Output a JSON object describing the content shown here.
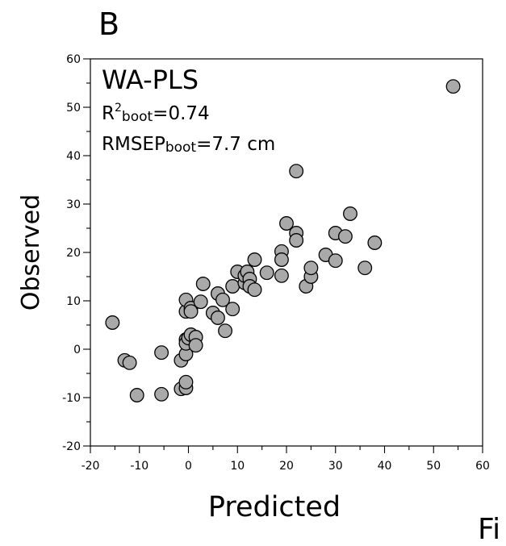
{
  "panel_label": "B",
  "corner_text": "Fi",
  "chart_data": {
    "type": "scatter",
    "title": "",
    "method": "WA-PLS",
    "stat_r2": {
      "prefix": "R",
      "sup": "2",
      "sub": "boot",
      "value": "=0.74"
    },
    "stat_rmsep": {
      "prefix": "RMSEP",
      "sub": "boot",
      "value": "=7.7 cm"
    },
    "xlabel": "Predicted",
    "ylabel": "Observed",
    "xlim": [
      -20,
      60
    ],
    "ylim": [
      -20,
      60
    ],
    "x_ticks": [
      "-20",
      "-10",
      "0",
      "10",
      "20",
      "30",
      "40",
      "50",
      "60"
    ],
    "y_ticks": [
      "-20",
      "-10",
      "0",
      "10",
      "20",
      "30",
      "40",
      "50",
      "60"
    ],
    "grid": false,
    "point_color": "#a9a9a9",
    "points": [
      [
        -15.5,
        5.5
      ],
      [
        -13,
        -2.3
      ],
      [
        -12,
        -2.8
      ],
      [
        -10.5,
        -9.5
      ],
      [
        -5.5,
        -9.3
      ],
      [
        -5.5,
        -0.7
      ],
      [
        -1.5,
        -8.2
      ],
      [
        -1.5,
        -2.3
      ],
      [
        -0.5,
        -1.0
      ],
      [
        -0.5,
        -8.0
      ],
      [
        -0.5,
        -6.8
      ],
      [
        -0.5,
        2.0
      ],
      [
        -0.5,
        1.2
      ],
      [
        0,
        2.3
      ],
      [
        0.5,
        3.0
      ],
      [
        1.5,
        2.5
      ],
      [
        1.5,
        0.8
      ],
      [
        -0.5,
        7.8
      ],
      [
        -0.5,
        10.2
      ],
      [
        0.5,
        8.5
      ],
      [
        0.5,
        7.8
      ],
      [
        2.5,
        9.8
      ],
      [
        3,
        13.5
      ],
      [
        5,
        7.5
      ],
      [
        6,
        11.5
      ],
      [
        6,
        6.5
      ],
      [
        7,
        10.2
      ],
      [
        7.5,
        3.8
      ],
      [
        9,
        13.0
      ],
      [
        9,
        8.3
      ],
      [
        10,
        16.0
      ],
      [
        11.5,
        13.7
      ],
      [
        11.5,
        15.2
      ],
      [
        12,
        16.0
      ],
      [
        12.5,
        14.5
      ],
      [
        12.5,
        13.0
      ],
      [
        13.5,
        18.5
      ],
      [
        13.5,
        12.3
      ],
      [
        16,
        15.8
      ],
      [
        19,
        20.2
      ],
      [
        19,
        18.5
      ],
      [
        19,
        15.2
      ],
      [
        20,
        26.0
      ],
      [
        22,
        24.0
      ],
      [
        22,
        22.5
      ],
      [
        22,
        36.8
      ],
      [
        24,
        13.0
      ],
      [
        25,
        15.0
      ],
      [
        25,
        16.8
      ],
      [
        28,
        19.5
      ],
      [
        30,
        24.0
      ],
      [
        30,
        18.3
      ],
      [
        32,
        23.3
      ],
      [
        33,
        28.0
      ],
      [
        36,
        16.8
      ],
      [
        38,
        22.0
      ],
      [
        54,
        54.3
      ]
    ]
  }
}
